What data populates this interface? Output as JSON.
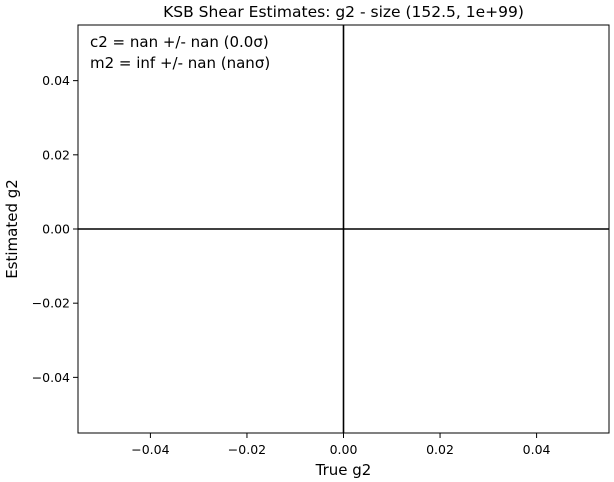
{
  "chart_data": {
    "type": "scatter",
    "title": "KSB Shear Estimates: g2  - size (152.5, 1e+99)",
    "xlabel": "True g2",
    "ylabel": "Estimated g2",
    "xlim": [
      -0.055,
      0.055
    ],
    "ylim": [
      -0.055,
      0.055
    ],
    "x_ticks": [
      -0.04,
      -0.02,
      0.0,
      0.02,
      0.04
    ],
    "y_ticks": [
      -0.04,
      -0.02,
      0.0,
      0.02,
      0.04
    ],
    "x_tick_labels": [
      "−0.04",
      "−0.02",
      "0.00",
      "0.02",
      "0.04"
    ],
    "y_tick_labels": [
      "−0.04",
      "−0.02",
      "0.00",
      "0.02",
      "0.04"
    ],
    "reference_lines": [
      {
        "orientation": "vertical",
        "value": 0.0
      },
      {
        "orientation": "horizontal",
        "value": 0.0
      }
    ],
    "annotations": [
      "c2 = nan +/- nan (0.0σ)",
      "m2 = inf +/- nan (nanσ)"
    ],
    "points": [],
    "grid": false
  }
}
